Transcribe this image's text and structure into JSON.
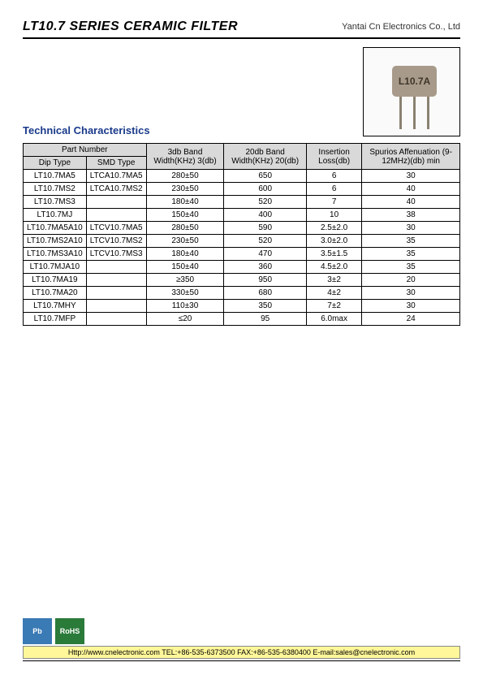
{
  "header": {
    "title": "LT10.7 SERIES CERAMIC FILTER",
    "company": "Yantai Cn Electronics Co., Ltd"
  },
  "product_label": "L10.7A",
  "section_title": "Technical Characteristics",
  "table": {
    "headers": {
      "part_number": "Part Number",
      "dip_type": "Dip Type",
      "smd_type": "SMD Type",
      "band3": "3db Band Width(KHz) 3(db)",
      "band20": "20db Band Width(KHz) 20(db)",
      "insertion": "Insertion Loss(db)",
      "spurious": "Spurios Affenuation (9-12MHz)(db) min"
    },
    "rows": [
      {
        "dip": "LT10.7MA5",
        "smd": "LTCA10.7MA5",
        "b3": "280±50",
        "b20": "650",
        "il": "6",
        "sp": "30"
      },
      {
        "dip": "LT10.7MS2",
        "smd": "LTCA10.7MS2",
        "b3": "230±50",
        "b20": "600",
        "il": "6",
        "sp": "40"
      },
      {
        "dip": "LT10.7MS3",
        "smd": "",
        "b3": "180±40",
        "b20": "520",
        "il": "7",
        "sp": "40"
      },
      {
        "dip": "LT10.7MJ",
        "smd": "",
        "b3": "150±40",
        "b20": "400",
        "il": "10",
        "sp": "38"
      },
      {
        "dip": "LT10.7MA5A10",
        "smd": "LTCV10.7MA5",
        "b3": "280±50",
        "b20": "590",
        "il": "2.5±2.0",
        "sp": "30"
      },
      {
        "dip": "LT10.7MS2A10",
        "smd": "LTCV10.7MS2",
        "b3": "230±50",
        "b20": "520",
        "il": "3.0±2.0",
        "sp": "35"
      },
      {
        "dip": "LT10.7MS3A10",
        "smd": "LTCV10.7MS3",
        "b3": "180±40",
        "b20": "470",
        "il": "3.5±1.5",
        "sp": "35"
      },
      {
        "dip": "LT10.7MJA10",
        "smd": "",
        "b3": "150±40",
        "b20": "360",
        "il": "4.5±2.0",
        "sp": "35"
      },
      {
        "dip": "LT10.7MA19",
        "smd": "",
        "b3": "≥350",
        "b20": "950",
        "il": "3±2",
        "sp": "20"
      },
      {
        "dip": "LT10.7MA20",
        "smd": "",
        "b3": "330±50",
        "b20": "680",
        "il": "4±2",
        "sp": "30"
      },
      {
        "dip": "LT10.7MHY",
        "smd": "",
        "b3": "110±30",
        "b20": "350",
        "il": "7±2",
        "sp": "30"
      },
      {
        "dip": "LT10.7MFP",
        "smd": "",
        "b3": "≤20",
        "b20": "95",
        "il": "6.0max",
        "sp": "24"
      }
    ]
  },
  "footer": {
    "pb": "Pb",
    "rohs": "RoHS",
    "text": "Http://www.cnelectronic.com   TEL:+86-535-6373500  FAX:+86-535-6380400  E-mail:sales@cnelectronic.com"
  }
}
